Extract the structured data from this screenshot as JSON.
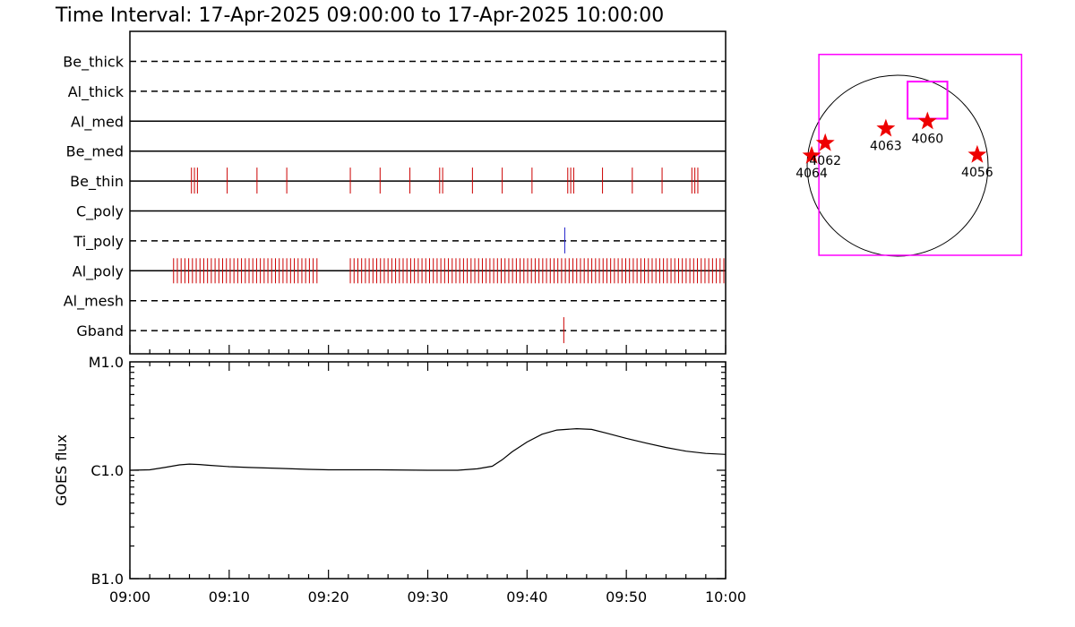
{
  "header": {
    "title": "Time Interval: 17-Apr-2025 09:00:00 to 17-Apr-2025 10:00:00"
  },
  "colors": {
    "axis": "#000000",
    "observation_tick": "#cc0000",
    "secondary_tick": "#2222cc",
    "map_box": "#ff00ff",
    "sunspot_star": "#ee0000"
  },
  "chart_data": [
    {
      "type": "timeline",
      "name": "filter-timeline",
      "x_unit": "minutes after 09:00",
      "xlim": [
        0,
        60
      ],
      "rows": [
        {
          "label": "Be_thick",
          "line": "dashed",
          "events": []
        },
        {
          "label": "Al_thick",
          "line": "dashed",
          "events": []
        },
        {
          "label": "Al_med",
          "line": "solid",
          "events": []
        },
        {
          "label": "Be_med",
          "line": "solid",
          "events": []
        },
        {
          "label": "Be_thin",
          "line": "solid",
          "color": "#cc0000",
          "events": [
            6.2,
            6.5,
            6.8,
            9.8,
            12.8,
            15.8,
            22.2,
            25.2,
            28.2,
            31.2,
            31.5,
            34.5,
            37.5,
            40.5,
            44.1,
            44.4,
            44.7,
            47.6,
            50.6,
            53.6,
            56.6,
            56.9,
            57.2
          ]
        },
        {
          "label": "C_poly",
          "line": "solid",
          "events": []
        },
        {
          "label": "Ti_poly",
          "line": "dashed",
          "color": "#2222cc",
          "events": [
            43.8
          ]
        },
        {
          "label": "Al_poly",
          "line": "solid",
          "color": "#cc0000",
          "ranges": [
            [
              4.4,
              18.9,
              0.38
            ],
            [
              22.2,
              60.0,
              0.38
            ]
          ],
          "events": []
        },
        {
          "label": "Al_mesh",
          "line": "dashed",
          "events": []
        },
        {
          "label": "Gband",
          "line": "dashed",
          "color": "#cc0000",
          "events": [
            43.7
          ]
        }
      ]
    },
    {
      "type": "line",
      "name": "goes-flux",
      "ylabel": "GOES flux",
      "y_scale": "log",
      "yticks": [
        {
          "label": "B1.0",
          "value": 1e-07
        },
        {
          "label": "C1.0",
          "value": 1e-06
        },
        {
          "label": "M1.0",
          "value": 1e-05
        }
      ],
      "ylim": [
        1e-07,
        1e-05
      ],
      "xlim": [
        0,
        60
      ],
      "xticks": [
        {
          "label": "09:00",
          "value": 0
        },
        {
          "label": "09:10",
          "value": 10
        },
        {
          "label": "09:20",
          "value": 20
        },
        {
          "label": "09:30",
          "value": 30
        },
        {
          "label": "09:40",
          "value": 40
        },
        {
          "label": "09:50",
          "value": 50
        },
        {
          "label": "10:00",
          "value": 60
        }
      ],
      "x": [
        0,
        2,
        3.5,
        5,
        6,
        7,
        8,
        10,
        12,
        15,
        18,
        20,
        25,
        30,
        33,
        35,
        36.5,
        37.5,
        38.5,
        40,
        41.5,
        43,
        45,
        46.5,
        48,
        50,
        52,
        54,
        56,
        58,
        60
      ],
      "y": [
        1e-06,
        1.01e-06,
        1.06e-06,
        1.12e-06,
        1.14e-06,
        1.13e-06,
        1.11e-06,
        1.08e-06,
        1.06e-06,
        1.04e-06,
        1.02e-06,
        1.01e-06,
        1.01e-06,
        1e-06,
        1e-06,
        1.03e-06,
        1.09e-06,
        1.25e-06,
        1.48e-06,
        1.82e-06,
        2.15e-06,
        2.35e-06,
        2.42e-06,
        2.38e-06,
        2.2e-06,
        1.97e-06,
        1.78e-06,
        1.62e-06,
        1.5e-06,
        1.43e-06,
        1.4e-06
      ]
    },
    {
      "type": "scatter",
      "name": "active-region-map",
      "x_unit": "solar radii",
      "y_unit": "solar radii",
      "xlim": [
        -1.15,
        1.15
      ],
      "ylim": [
        -1.15,
        1.15
      ],
      "fov_box": {
        "x0": -0.87,
        "x1": 1.37,
        "y0": -0.99,
        "y1": 1.23
      },
      "zoom_box": {
        "x0": 0.11,
        "x1": 0.55,
        "y0": 0.52,
        "y1": 0.93
      },
      "points": [
        {
          "label": "4064",
          "x": -0.95,
          "y": 0.11
        },
        {
          "label": "4062",
          "x": -0.8,
          "y": 0.25
        },
        {
          "label": "4063",
          "x": -0.13,
          "y": 0.41
        },
        {
          "label": "4060",
          "x": 0.33,
          "y": 0.49
        },
        {
          "label": "4056",
          "x": 0.88,
          "y": 0.12
        }
      ]
    }
  ]
}
